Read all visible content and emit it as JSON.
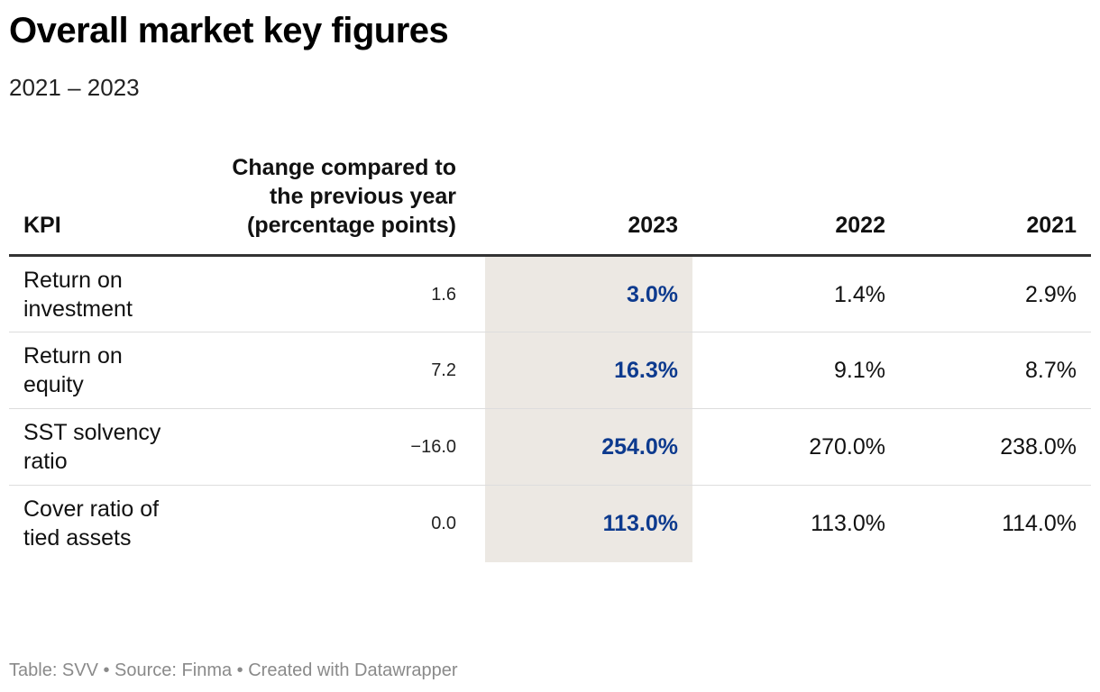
{
  "title": "Overall market key figures",
  "subtitle": "2021 – 2023",
  "footer": "Table: SVV • Source: Finma • Created with Datawrapper",
  "colors": {
    "highlight_column_bg": "#ece8e3",
    "highlight_text": "#0d3a8e",
    "footer_text": "#8a8a8a"
  },
  "chart_data": {
    "type": "table",
    "highlight_column": "2023",
    "columns": [
      {
        "key": "kpi",
        "label": "KPI"
      },
      {
        "key": "change",
        "label": "Change compared to the previous year (percentage points)"
      },
      {
        "key": "y2023",
        "label": "2023"
      },
      {
        "key": "y2022",
        "label": "2022"
      },
      {
        "key": "y2021",
        "label": "2021"
      }
    ],
    "rows": [
      {
        "kpi": "Return on investment",
        "change": "1.6",
        "y2023": "3.0%",
        "y2022": "1.4%",
        "y2021": "2.9%"
      },
      {
        "kpi": "Return on equity",
        "change": "7.2",
        "y2023": "16.3%",
        "y2022": "9.1%",
        "y2021": "8.7%"
      },
      {
        "kpi": "SST solvency ratio",
        "change": "−16.0",
        "y2023": "254.0%",
        "y2022": "270.0%",
        "y2021": "238.0%"
      },
      {
        "kpi": "Cover ratio of tied assets",
        "change": "0.0",
        "y2023": "113.0%",
        "y2022": "113.0%",
        "y2021": "114.0%"
      }
    ]
  }
}
